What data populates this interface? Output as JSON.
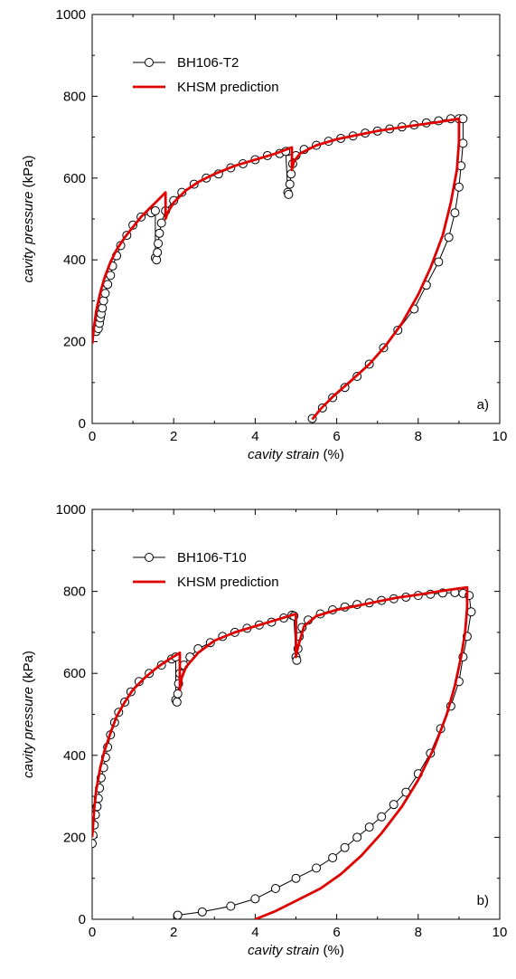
{
  "chart_data": [
    {
      "type": "scatter",
      "panel_label": "a)",
      "xlabel": {
        "italic": "cavity strain",
        "plain": " (%)"
      },
      "ylabel": {
        "italic": "cavity pressure",
        "plain": " (kPa)"
      },
      "xlim": [
        0,
        10
      ],
      "ylim": [
        0,
        1000
      ],
      "xticks": [
        0,
        2,
        4,
        6,
        8,
        10
      ],
      "yticks": [
        0,
        200,
        400,
        600,
        800,
        1000
      ],
      "grid": false,
      "legend_position": "top-left",
      "colors": {
        "measured": "#000000",
        "prediction": "#e00000"
      },
      "series": [
        {
          "name": "BH106-T2",
          "kind": "markers-with-line",
          "points": [
            [
              0.1,
              225
            ],
            [
              0.15,
              232
            ],
            [
              0.18,
              245
            ],
            [
              0.2,
              258
            ],
            [
              0.22,
              268
            ],
            [
              0.25,
              282
            ],
            [
              0.28,
              300
            ],
            [
              0.32,
              318
            ],
            [
              0.38,
              340
            ],
            [
              0.45,
              362
            ],
            [
              0.5,
              385
            ],
            [
              0.6,
              410
            ],
            [
              0.7,
              435
            ],
            [
              0.85,
              460
            ],
            [
              1.0,
              485
            ],
            [
              1.2,
              505
            ],
            [
              1.45,
              515
            ],
            [
              1.55,
              520
            ],
            [
              1.55,
              405
            ],
            [
              1.58,
              400
            ],
            [
              1.6,
              418
            ],
            [
              1.62,
              440
            ],
            [
              1.65,
              465
            ],
            [
              1.7,
              490
            ],
            [
              1.8,
              520
            ],
            [
              2.0,
              545
            ],
            [
              2.2,
              565
            ],
            [
              2.5,
              585
            ],
            [
              2.8,
              600
            ],
            [
              3.1,
              610
            ],
            [
              3.4,
              625
            ],
            [
              3.7,
              635
            ],
            [
              4.0,
              645
            ],
            [
              4.3,
              655
            ],
            [
              4.6,
              660
            ],
            [
              4.8,
              665
            ],
            [
              4.75,
              665
            ],
            [
              4.8,
              565
            ],
            [
              4.82,
              560
            ],
            [
              4.85,
              585
            ],
            [
              4.88,
              610
            ],
            [
              4.92,
              635
            ],
            [
              5.0,
              655
            ],
            [
              5.2,
              670
            ],
            [
              5.5,
              680
            ],
            [
              5.8,
              690
            ],
            [
              6.1,
              697
            ],
            [
              6.4,
              703
            ],
            [
              6.7,
              710
            ],
            [
              7.0,
              715
            ],
            [
              7.3,
              720
            ],
            [
              7.6,
              725
            ],
            [
              7.9,
              730
            ],
            [
              8.2,
              735
            ],
            [
              8.5,
              740
            ],
            [
              8.8,
              745
            ],
            [
              9.0,
              745
            ],
            [
              9.1,
              745
            ],
            [
              9.1,
              685
            ],
            [
              9.05,
              630
            ],
            [
              9.0,
              578
            ],
            [
              8.9,
              515
            ],
            [
              8.75,
              455
            ],
            [
              8.5,
              395
            ],
            [
              8.2,
              338
            ],
            [
              7.9,
              280
            ],
            [
              7.5,
              228
            ],
            [
              7.15,
              185
            ],
            [
              6.8,
              145
            ],
            [
              6.5,
              115
            ],
            [
              6.2,
              88
            ],
            [
              5.9,
              63
            ],
            [
              5.65,
              38
            ],
            [
              5.4,
              12
            ]
          ]
        },
        {
          "name": "KHSM prediction",
          "kind": "line",
          "points": [
            [
              0,
              195
            ],
            [
              0.05,
              240
            ],
            [
              0.1,
              275
            ],
            [
              0.2,
              320
            ],
            [
              0.3,
              355
            ],
            [
              0.45,
              395
            ],
            [
              0.6,
              425
            ],
            [
              0.8,
              455
            ],
            [
              1.0,
              480
            ],
            [
              1.2,
              505
            ],
            [
              1.4,
              525
            ],
            [
              1.6,
              545
            ],
            [
              1.8,
              565
            ],
            [
              1.8,
              500
            ],
            [
              1.85,
              515
            ],
            [
              2.0,
              540
            ],
            [
              2.3,
              570
            ],
            [
              2.6,
              590
            ],
            [
              3.0,
              610
            ],
            [
              3.5,
              630
            ],
            [
              4.0,
              645
            ],
            [
              4.5,
              660
            ],
            [
              4.9,
              675
            ],
            [
              4.9,
              620
            ],
            [
              4.95,
              640
            ],
            [
              5.1,
              660
            ],
            [
              5.5,
              680
            ],
            [
              6.0,
              695
            ],
            [
              6.5,
              705
            ],
            [
              7.0,
              715
            ],
            [
              7.5,
              723
            ],
            [
              8.0,
              730
            ],
            [
              8.5,
              737
            ],
            [
              9.0,
              745
            ],
            [
              9.0,
              690
            ],
            [
              8.95,
              620
            ],
            [
              8.8,
              540
            ],
            [
              8.6,
              460
            ],
            [
              8.3,
              380
            ],
            [
              8.0,
              315
            ],
            [
              7.6,
              245
            ],
            [
              7.2,
              190
            ],
            [
              6.8,
              145
            ],
            [
              6.3,
              100
            ],
            [
              5.9,
              65
            ],
            [
              5.6,
              35
            ],
            [
              5.4,
              10
            ]
          ]
        }
      ]
    },
    {
      "type": "scatter",
      "panel_label": "b)",
      "xlabel": {
        "italic": "cavity strain",
        "plain": " (%)"
      },
      "ylabel": {
        "italic": "cavity pressure",
        "plain": " (kPa)"
      },
      "xlim": [
        0,
        10
      ],
      "ylim": [
        0,
        1000
      ],
      "xticks": [
        0,
        2,
        4,
        6,
        8,
        10
      ],
      "yticks": [
        0,
        200,
        400,
        600,
        800,
        1000
      ],
      "grid": false,
      "legend_position": "top-left",
      "colors": {
        "measured": "#000000",
        "prediction": "#e00000"
      },
      "series": [
        {
          "name": "BH106-T10",
          "kind": "markers-with-line",
          "points": [
            [
              0.0,
              185
            ],
            [
              0.02,
              205
            ],
            [
              0.05,
              230
            ],
            [
              0.08,
              255
            ],
            [
              0.12,
              275
            ],
            [
              0.15,
              295
            ],
            [
              0.18,
              320
            ],
            [
              0.22,
              345
            ],
            [
              0.28,
              370
            ],
            [
              0.33,
              395
            ],
            [
              0.38,
              420
            ],
            [
              0.45,
              450
            ],
            [
              0.55,
              480
            ],
            [
              0.65,
              505
            ],
            [
              0.8,
              530
            ],
            [
              0.95,
              555
            ],
            [
              1.15,
              580
            ],
            [
              1.4,
              600
            ],
            [
              1.7,
              620
            ],
            [
              1.95,
              635
            ],
            [
              2.05,
              640
            ],
            [
              2.05,
              535
            ],
            [
              2.08,
              530
            ],
            [
              2.1,
              550
            ],
            [
              2.12,
              575
            ],
            [
              2.15,
              600
            ],
            [
              2.25,
              620
            ],
            [
              2.4,
              640
            ],
            [
              2.6,
              660
            ],
            [
              2.9,
              675
            ],
            [
              3.2,
              690
            ],
            [
              3.5,
              700
            ],
            [
              3.8,
              710
            ],
            [
              4.1,
              718
            ],
            [
              4.4,
              725
            ],
            [
              4.7,
              735
            ],
            [
              4.9,
              742
            ],
            [
              4.95,
              740
            ],
            [
              5.0,
              640
            ],
            [
              5.02,
              632
            ],
            [
              5.05,
              660
            ],
            [
              5.08,
              690
            ],
            [
              5.15,
              712
            ],
            [
              5.3,
              730
            ],
            [
              5.6,
              745
            ],
            [
              5.9,
              755
            ],
            [
              6.2,
              762
            ],
            [
              6.5,
              768
            ],
            [
              6.8,
              772
            ],
            [
              7.1,
              778
            ],
            [
              7.4,
              782
            ],
            [
              7.7,
              786
            ],
            [
              8.0,
              790
            ],
            [
              8.3,
              793
            ],
            [
              8.6,
              796
            ],
            [
              8.9,
              797
            ],
            [
              9.1,
              795
            ],
            [
              9.25,
              790
            ],
            [
              9.3,
              750
            ],
            [
              9.2,
              690
            ],
            [
              9.1,
              640
            ],
            [
              9.0,
              580
            ],
            [
              8.8,
              520
            ],
            [
              8.55,
              465
            ],
            [
              8.3,
              405
            ],
            [
              8.0,
              355
            ],
            [
              7.7,
              310
            ],
            [
              7.4,
              280
            ],
            [
              7.1,
              250
            ],
            [
              6.8,
              225
            ],
            [
              6.5,
              200
            ],
            [
              6.2,
              175
            ],
            [
              5.9,
              150
            ],
            [
              5.5,
              125
            ],
            [
              5.0,
              100
            ],
            [
              4.5,
              75
            ],
            [
              4.0,
              50
            ],
            [
              3.4,
              32
            ],
            [
              2.7,
              18
            ],
            [
              2.1,
              10
            ]
          ]
        },
        {
          "name": "KHSM prediction",
          "kind": "line",
          "points": [
            [
              0,
              200
            ],
            [
              0.05,
              270
            ],
            [
              0.1,
              315
            ],
            [
              0.2,
              370
            ],
            [
              0.3,
              410
            ],
            [
              0.45,
              455
            ],
            [
              0.6,
              495
            ],
            [
              0.8,
              530
            ],
            [
              1.0,
              560
            ],
            [
              1.3,
              590
            ],
            [
              1.6,
              615
            ],
            [
              1.9,
              635
            ],
            [
              2.15,
              650
            ],
            [
              2.15,
              560
            ],
            [
              2.2,
              590
            ],
            [
              2.3,
              615
            ],
            [
              2.6,
              650
            ],
            [
              3.0,
              680
            ],
            [
              3.5,
              700
            ],
            [
              4.0,
              715
            ],
            [
              4.5,
              730
            ],
            [
              5.0,
              745
            ],
            [
              5.0,
              640
            ],
            [
              5.05,
              665
            ],
            [
              5.2,
              715
            ],
            [
              5.5,
              740
            ],
            [
              6.0,
              755
            ],
            [
              6.5,
              765
            ],
            [
              7.0,
              775
            ],
            [
              7.5,
              785
            ],
            [
              8.0,
              792
            ],
            [
              8.5,
              800
            ],
            [
              9.2,
              810
            ],
            [
              9.2,
              760
            ],
            [
              9.15,
              700
            ],
            [
              9.05,
              640
            ],
            [
              8.9,
              570
            ],
            [
              8.7,
              500
            ],
            [
              8.4,
              420
            ],
            [
              8.0,
              340
            ],
            [
              7.6,
              275
            ],
            [
              7.1,
              210
            ],
            [
              6.6,
              155
            ],
            [
              6.1,
              110
            ],
            [
              5.6,
              75
            ],
            [
              5.0,
              45
            ],
            [
              4.5,
              20
            ],
            [
              4.0,
              0
            ]
          ]
        }
      ]
    }
  ]
}
